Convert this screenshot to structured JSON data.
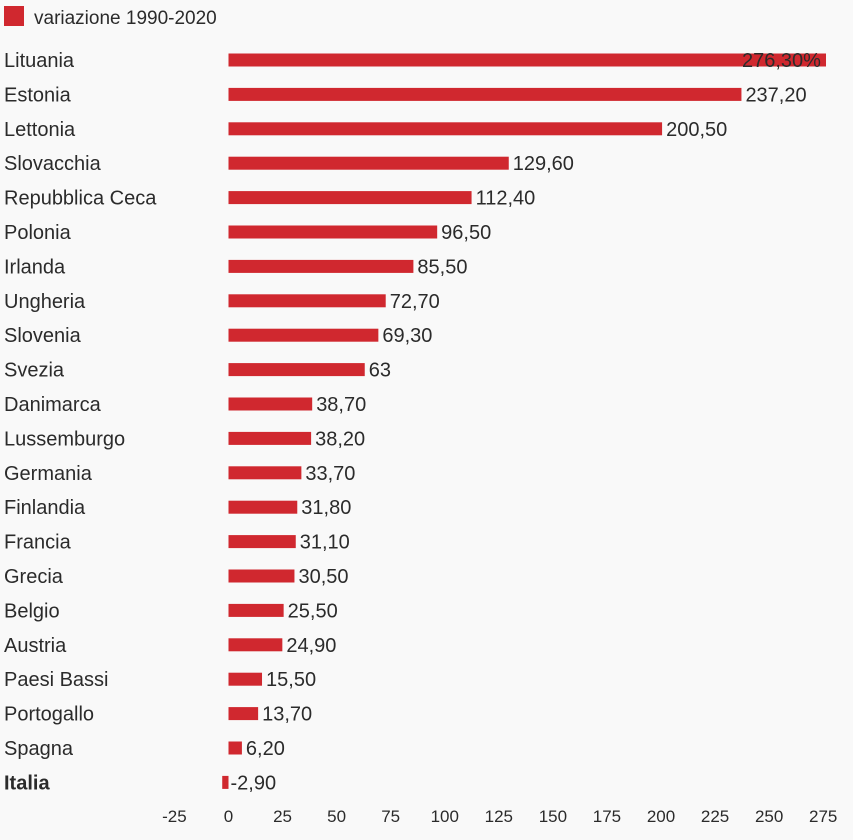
{
  "colors": {
    "bar": "#d0282f",
    "text": "#2b2b2b",
    "background": "#f9f9f9"
  },
  "chart_data": {
    "type": "bar",
    "orientation": "horizontal",
    "legend": {
      "label": "variazione 1990-2020",
      "placement": "top-left"
    },
    "categories": [
      "Lituania",
      "Estonia",
      "Lettonia",
      "Slovacchia",
      "Repubblica Ceca",
      "Polonia",
      "Irlanda",
      "Ungheria",
      "Slovenia",
      "Svezia",
      "Danimarca",
      "Lussemburgo",
      "Germania",
      "Finlandia",
      "Francia",
      "Grecia",
      "Belgio",
      "Austria",
      "Paesi Bassi",
      "Portogallo",
      "Spagna",
      "Italia"
    ],
    "highlighted_category": "Italia",
    "series": [
      {
        "name": "variazione 1990-2020",
        "values": [
          276.3,
          237.2,
          200.5,
          129.6,
          112.4,
          96.5,
          85.5,
          72.7,
          69.3,
          63,
          38.7,
          38.2,
          33.7,
          31.8,
          31.1,
          30.5,
          25.5,
          24.9,
          15.5,
          13.7,
          6.2,
          -2.9
        ],
        "data_labels": [
          "276,30%",
          "237,20",
          "200,50",
          "129,60",
          "112,40",
          "96,50",
          "85,50",
          "72,70",
          "69,30",
          "63",
          "38,70",
          "38,20",
          "33,70",
          "31,80",
          "31,10",
          "30,50",
          "25,50",
          "24,90",
          "15,50",
          "13,70",
          "6,20",
          "-2,90"
        ]
      }
    ],
    "x_ticks": [
      -25,
      0,
      25,
      50,
      75,
      100,
      125,
      150,
      175,
      200,
      225,
      250,
      275
    ],
    "x_tick_labels": [
      "-25",
      "0",
      "25",
      "50",
      "75",
      "100",
      "125",
      "150",
      "175",
      "200",
      "225",
      "250",
      "275"
    ],
    "xlim": [
      -25,
      275
    ],
    "grid": false
  }
}
